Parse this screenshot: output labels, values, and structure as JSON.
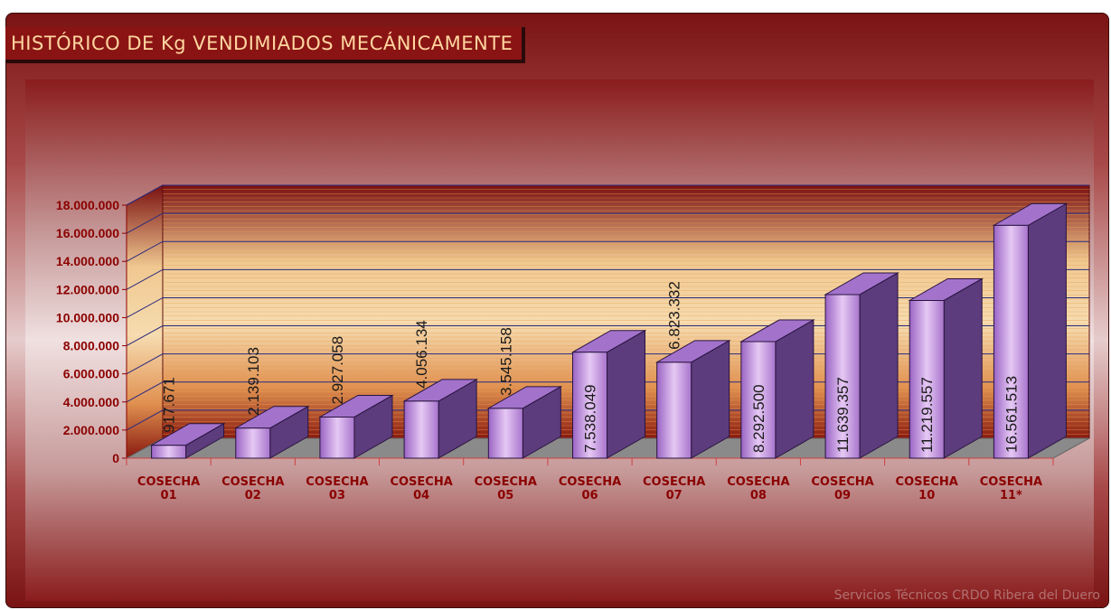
{
  "chart_data": {
    "type": "bar3d",
    "title": "HISTÓRICO DE Kg VENDIMIADOS MECÁNICAMENTE",
    "footer": "Servicios Técnicos CRDO Ribera del Duero",
    "categories": [
      "COSECHA 01",
      "COSECHA 02",
      "COSECHA 03",
      "COSECHA 04",
      "COSECHA 05",
      "COSECHA 06",
      "COSECHA 07",
      "COSECHA 08",
      "COSECHA 09",
      "COSECHA 10",
      "COSECHA 11*"
    ],
    "values": [
      917671,
      2139103,
      2927058,
      4056134,
      3545158,
      7538049,
      6823332,
      8292500,
      11639357,
      11219557,
      16561513
    ],
    "value_labels": [
      "917.671",
      "2.139.103",
      "2.927.058",
      "4.056.134",
      "3.545.158",
      "7.538.049",
      "6.823.332",
      "8.292.500",
      "11.639.357",
      "11.219.557",
      "16.561.513"
    ],
    "color": "#b383d6",
    "ylim": [
      0,
      18000000
    ],
    "yticks": [
      0,
      {
        "value": 2000000,
        "label": "2.000.000"
      },
      {
        "value": 4000000,
        "label": "4.000.000"
      },
      {
        "value": 6000000,
        "label": "6.000.000"
      },
      {
        "value": 8000000,
        "label": "8.000.000"
      },
      {
        "value": 10000000,
        "label": "10.000.000"
      },
      {
        "value": 12000000,
        "label": "12.000.000"
      },
      {
        "value": 14000000,
        "label": "14.000.000"
      },
      {
        "value": 16000000,
        "label": "16.000.000"
      },
      {
        "value": 18000000,
        "label": "18.000.000"
      }
    ],
    "grid": true
  }
}
